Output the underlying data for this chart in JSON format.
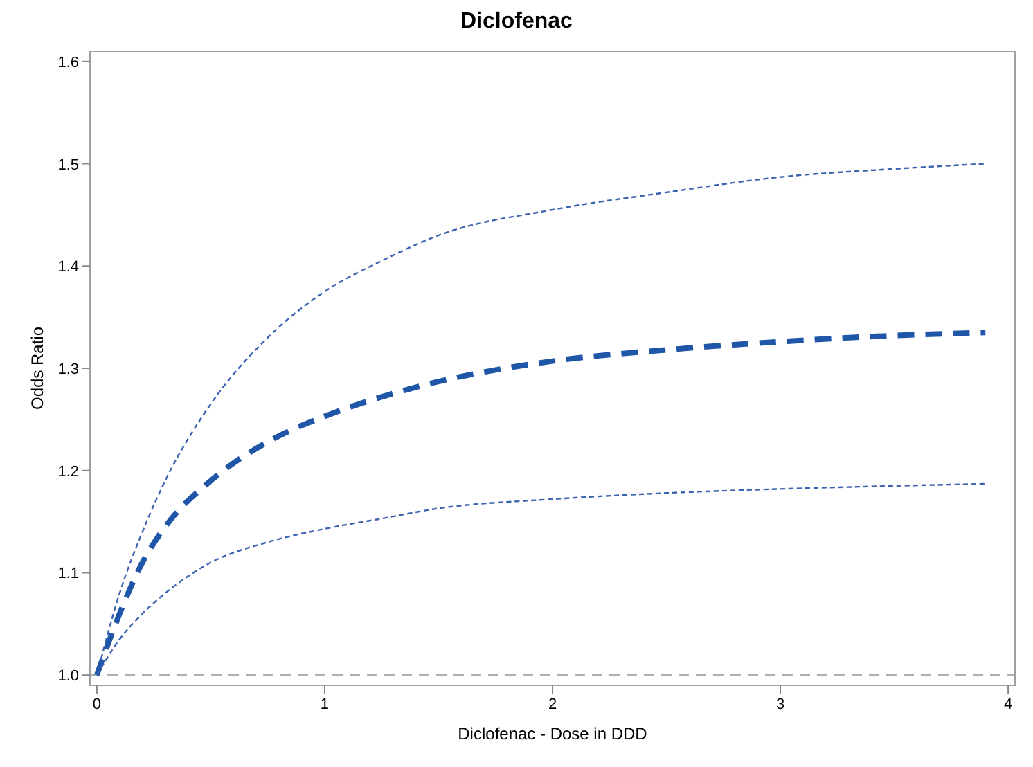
{
  "chart_data": {
    "type": "line",
    "title": "Diclofenac",
    "xlabel": "Diclofenac - Dose in DDD",
    "ylabel": "Odds Ratio",
    "xlim": [
      -0.03,
      4.03
    ],
    "ylim": [
      0.99,
      1.61
    ],
    "xticks": [
      0,
      1,
      2,
      3,
      4
    ],
    "yticks": [
      {
        "value": 1.0,
        "label": "1.0"
      },
      1.1,
      1.2,
      1.3,
      1.4,
      1.5,
      1.6
    ],
    "x": [
      0,
      0.1,
      0.2,
      0.3,
      0.5,
      0.75,
      1,
      1.25,
      1.5,
      2,
      2.5,
      3,
      3.5,
      3.9
    ],
    "line_style": "dashed",
    "grid": false,
    "series": [
      {
        "color": "#3a62b0",
        "values": [
          1.0,
          1.08,
          1.14,
          1.19,
          1.265,
          1.33,
          1.375,
          1.405,
          1.43,
          1.455,
          1.472,
          1.487,
          1.495,
          1.5
        ]
      },
      {
        "color": "#1f56a8",
        "values": [
          1.0,
          1.06,
          1.11,
          1.145,
          1.19,
          1.228,
          1.253,
          1.272,
          1.287,
          1.307,
          1.318,
          1.326,
          1.332,
          1.335
        ]
      },
      {
        "color": "#3a62b0",
        "values": [
          1.0,
          1.035,
          1.06,
          1.08,
          1.11,
          1.13,
          1.143,
          1.153,
          1.163,
          1.172,
          1.178,
          1.182,
          1.185,
          1.187
        ]
      }
    ],
    "ref_lines": [
      {
        "axis": "y",
        "value": 1.0,
        "color": "#b0b0b0",
        "line_style": "dashed"
      }
    ]
  }
}
